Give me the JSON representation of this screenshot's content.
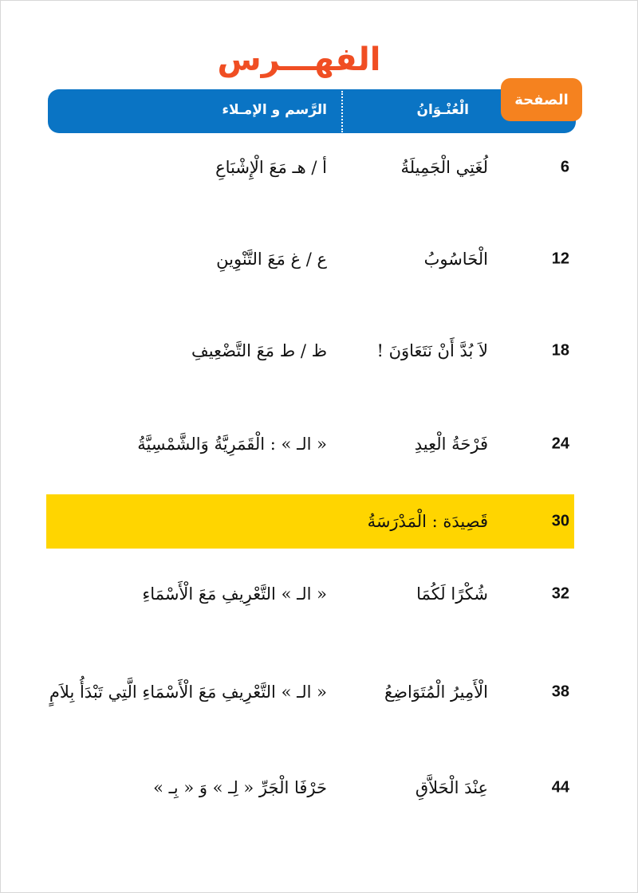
{
  "title": "الفهـــرس",
  "header": {
    "page_label": "الصفحة",
    "title_label": "الْعُنْـوَانُ",
    "spelling_label": "الرَّسم و الإمـلاء"
  },
  "colors": {
    "title": "#f04e23",
    "header_bar": "#0a74c4",
    "page_tab": "#f5821f",
    "highlight": "#ffd500"
  },
  "rows": [
    {
      "page": "6",
      "title": "لُغَتِي الْجَمِيلَةُ",
      "spelling": "أ / هـ  مَعَ الْإِشْبَاعِ"
    },
    {
      "page": "12",
      "title": "الْحَاسُوبُ",
      "spelling": "ع / غ  مَعَ التَّنْوِينِ"
    },
    {
      "page": "18",
      "title": "لاَ بُدَّ أَنْ نَتَعَاوَنَ !",
      "spelling": "ظ / ط  مَعَ التَّضْعِيفِ"
    },
    {
      "page": "24",
      "title": "فَرْحَةُ الْعِيدِ",
      "spelling": "« الـ » : الْقَمَرِيَّةُ وَالشَّمْسِيَّةُ"
    },
    {
      "page": "30",
      "title": "قَصِيدَة : الْمَدْرَسَةُ",
      "spelling": "",
      "highlighted": true
    },
    {
      "page": "32",
      "title": "شُكْرًا لَكُمَا",
      "spelling": "« الـ »  التَّعْرِيفِ مَعَ الْأَسْمَاءِ"
    },
    {
      "page": "38",
      "title": "الْأَمِيرُ الْمُتَوَاضِعُ",
      "spelling": "« الـ »  التَّعْرِيفِ مَعَ الْأَسْمَاءِ الَّتِي تَبْدَأُ بِلاَمٍ"
    },
    {
      "page": "44",
      "title": "عِنْدَ الْحَلاَّقِ",
      "spelling": "حَرْفَا الْجَرِّ « لِـ » وَ « بِـ »"
    }
  ]
}
